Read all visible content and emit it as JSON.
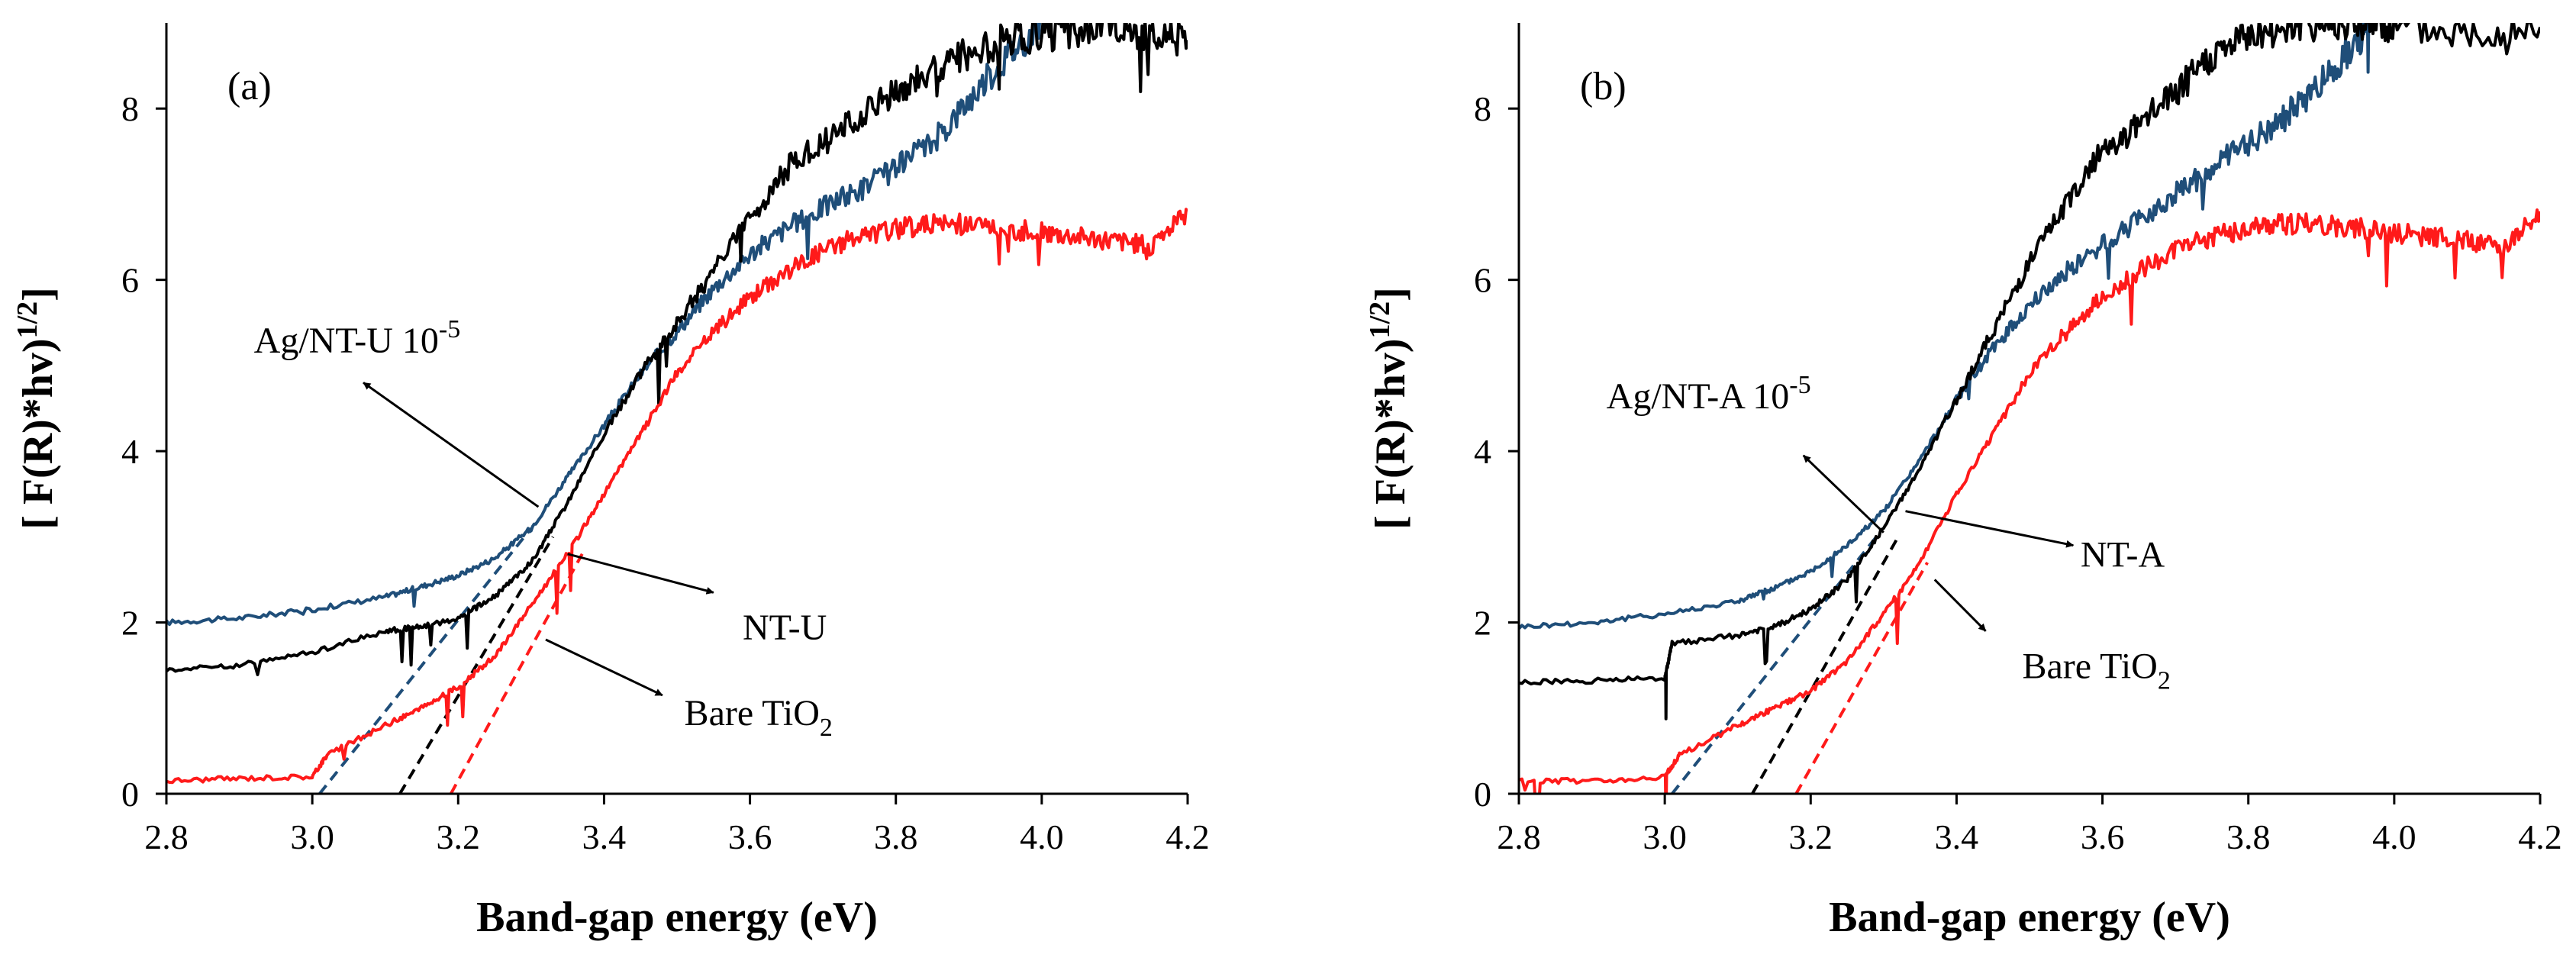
{
  "colors": {
    "black": "#000000",
    "blue": "#1f4e79",
    "red": "#ff1a1a"
  },
  "chart_data": [
    {
      "type": "line",
      "panel_label": "(a)",
      "xlabel": "Band-gap energy (eV)",
      "ylabel": "[ F(R)*hv)1/2]",
      "ylabel_parts": {
        "pre": "[ F(R)*hv)",
        "sup": "1/2",
        "post": "]"
      },
      "xlim": [
        2.8,
        4.2
      ],
      "ylim": [
        0,
        9
      ],
      "xticks": [
        "2.8",
        "3.0",
        "3.2",
        "3.4",
        "3.6",
        "3.8",
        "4.0",
        "4.2"
      ],
      "yticks": [
        "0",
        "2",
        "4",
        "6",
        "8"
      ],
      "grid": false,
      "series": [
        {
          "name": "Ag/NT-U 10-5",
          "color": "#1f4e79",
          "x": [
            2.8,
            2.9,
            3.0,
            3.1,
            3.15,
            3.2,
            3.25,
            3.3,
            3.35,
            3.4,
            3.45,
            3.5,
            3.55,
            3.6,
            3.65,
            3.7,
            3.75,
            3.8,
            3.85,
            3.9,
            3.95,
            4.0
          ],
          "y": [
            2.0,
            2.05,
            2.15,
            2.3,
            2.42,
            2.55,
            2.75,
            3.1,
            3.7,
            4.3,
            4.9,
            5.4,
            5.9,
            6.3,
            6.6,
            6.85,
            7.05,
            7.3,
            7.6,
            8.1,
            8.6,
            9.0
          ]
        },
        {
          "name": "NT-U",
          "color": "#000000",
          "x": [
            2.8,
            2.9,
            3.0,
            3.1,
            3.15,
            3.2,
            3.25,
            3.3,
            3.35,
            3.4,
            3.45,
            3.5,
            3.55,
            3.6,
            3.65,
            3.7,
            3.75,
            3.8,
            3.85,
            3.9,
            3.95,
            4.0,
            4.05,
            4.1,
            4.15,
            4.2
          ],
          "y": [
            1.45,
            1.5,
            1.65,
            1.9,
            1.95,
            2.05,
            2.3,
            2.7,
            3.4,
            4.2,
            4.9,
            5.5,
            6.1,
            6.7,
            7.3,
            7.6,
            7.9,
            8.2,
            8.45,
            8.65,
            8.8,
            8.85,
            8.9,
            8.95,
            8.85,
            8.8
          ]
        },
        {
          "name": "Bare TiO2",
          "color": "#ff1a1a",
          "x": [
            2.8,
            2.9,
            3.0,
            3.02,
            3.1,
            3.15,
            3.2,
            3.25,
            3.3,
            3.35,
            3.4,
            3.45,
            3.5,
            3.55,
            3.6,
            3.65,
            3.7,
            3.75,
            3.8,
            3.85,
            3.9,
            3.95,
            4.0,
            4.05,
            4.1,
            4.15,
            4.2
          ],
          "y": [
            0.15,
            0.18,
            0.2,
            0.45,
            0.8,
            1.0,
            1.25,
            1.6,
            2.2,
            2.8,
            3.5,
            4.2,
            4.9,
            5.4,
            5.8,
            6.1,
            6.35,
            6.5,
            6.6,
            6.65,
            6.65,
            6.6,
            6.55,
            6.5,
            6.45,
            6.4,
            6.8
          ]
        }
      ],
      "tangents": [
        {
          "color": "#1f4e79",
          "x": [
            3.01,
            3.3
          ],
          "y": [
            0.0,
            3.1
          ]
        },
        {
          "color": "#000000",
          "x": [
            3.12,
            3.33
          ],
          "y": [
            0.0,
            3.0
          ]
        },
        {
          "color": "#ff1a1a",
          "x": [
            3.19,
            3.37
          ],
          "y": [
            0.0,
            2.8
          ]
        }
      ],
      "annotations": [
        {
          "label": "Ag/NT-U 10",
          "sup": "-5",
          "sub": "",
          "text_at": [
            2.92,
            5.15
          ],
          "arrow_from": [
            3.31,
            3.35
          ],
          "arrow_to": [
            3.07,
            4.8
          ]
        },
        {
          "label": "NT-U",
          "sup": "",
          "sub": "",
          "text_at": [
            3.59,
            1.8
          ],
          "arrow_from": [
            3.35,
            2.8
          ],
          "arrow_to": [
            3.55,
            2.35
          ]
        },
        {
          "label": "Bare TiO",
          "sup": "",
          "sub": "2",
          "text_at": [
            3.51,
            0.8
          ],
          "arrow_from": [
            3.32,
            1.8
          ],
          "arrow_to": [
            3.48,
            1.15
          ]
        }
      ]
    },
    {
      "type": "line",
      "panel_label": "(b)",
      "xlabel": "Band-gap energy (eV)",
      "ylabel": "[ F(R)*hv)1/2]",
      "ylabel_parts": {
        "pre": "[ F(R)*hv)",
        "sup": "1/2",
        "post": "]"
      },
      "xlim": [
        2.8,
        4.2
      ],
      "ylim": [
        0,
        9
      ],
      "xticks": [
        "2.8",
        "3.0",
        "3.2",
        "3.4",
        "3.6",
        "3.8",
        "4.0",
        "4.2"
      ],
      "yticks": [
        "0",
        "2",
        "4",
        "6",
        "8"
      ],
      "grid": false,
      "series": [
        {
          "name": "Ag/NT-A 10-5",
          "color": "#1f4e79",
          "x": [
            2.8,
            2.9,
            3.0,
            3.1,
            3.15,
            3.2,
            3.25,
            3.3,
            3.35,
            3.4,
            3.45,
            3.5,
            3.55,
            3.6,
            3.65,
            3.7,
            3.75,
            3.8,
            3.85,
            3.9,
            3.95,
            3.97
          ],
          "y": [
            1.95,
            2.0,
            2.1,
            2.25,
            2.4,
            2.6,
            2.9,
            3.3,
            3.9,
            4.6,
            5.2,
            5.7,
            6.1,
            6.4,
            6.7,
            7.0,
            7.3,
            7.6,
            7.9,
            8.3,
            8.8,
            9.0
          ]
        },
        {
          "name": "NT-A",
          "color": "#000000",
          "x": [
            2.8,
            2.9,
            3.0,
            3.01,
            3.1,
            3.15,
            3.2,
            3.25,
            3.3,
            3.35,
            3.4,
            3.45,
            3.5,
            3.55,
            3.6,
            3.65,
            3.7,
            3.75,
            3.8,
            3.85,
            3.9,
            3.95,
            4.0,
            4.1,
            4.2
          ],
          "y": [
            1.3,
            1.32,
            1.35,
            1.75,
            1.85,
            1.95,
            2.15,
            2.5,
            3.1,
            3.8,
            4.6,
            5.4,
            6.2,
            6.9,
            7.5,
            7.8,
            8.2,
            8.6,
            8.85,
            8.95,
            9.0,
            9.0,
            8.95,
            8.9,
            8.95
          ]
        },
        {
          "name": "Bare TiO2",
          "color": "#ff1a1a",
          "x": [
            2.8,
            2.9,
            3.0,
            3.02,
            3.1,
            3.15,
            3.2,
            3.25,
            3.3,
            3.35,
            3.4,
            3.45,
            3.5,
            3.55,
            3.6,
            3.65,
            3.7,
            3.75,
            3.8,
            3.85,
            3.9,
            3.95,
            4.0,
            4.05,
            4.1,
            4.15,
            4.2
          ],
          "y": [
            0.15,
            0.15,
            0.2,
            0.45,
            0.8,
            1.0,
            1.2,
            1.55,
            2.1,
            2.7,
            3.5,
            4.2,
            4.9,
            5.4,
            5.8,
            6.1,
            6.35,
            6.5,
            6.6,
            6.65,
            6.65,
            6.6,
            6.55,
            6.5,
            6.45,
            6.4,
            6.8
          ]
        }
      ],
      "tangents": [
        {
          "color": "#1f4e79",
          "x": [
            3.01,
            3.29
          ],
          "y": [
            0.0,
            3.0
          ]
        },
        {
          "color": "#000000",
          "x": [
            3.12,
            3.32
          ],
          "y": [
            0.0,
            3.0
          ]
        },
        {
          "color": "#ff1a1a",
          "x": [
            3.18,
            3.36
          ],
          "y": [
            0.0,
            2.7
          ]
        }
      ],
      "annotations": [
        {
          "label": "Ag/NT-A 10",
          "sup": "-5",
          "sub": "",
          "text_at": [
            2.92,
            4.5
          ],
          "arrow_from": [
            3.3,
            3.05
          ],
          "arrow_to": [
            3.19,
            3.95
          ]
        },
        {
          "label": "NT-A",
          "sup": "",
          "sub": "",
          "text_at": [
            3.57,
            2.65
          ],
          "arrow_from": [
            3.33,
            3.3
          ],
          "arrow_to": [
            3.56,
            2.9
          ]
        },
        {
          "label": "Bare TiO",
          "sup": "",
          "sub": "2",
          "text_at": [
            3.49,
            1.35
          ],
          "arrow_from": [
            3.37,
            2.5
          ],
          "arrow_to": [
            3.44,
            1.9
          ]
        }
      ]
    }
  ]
}
